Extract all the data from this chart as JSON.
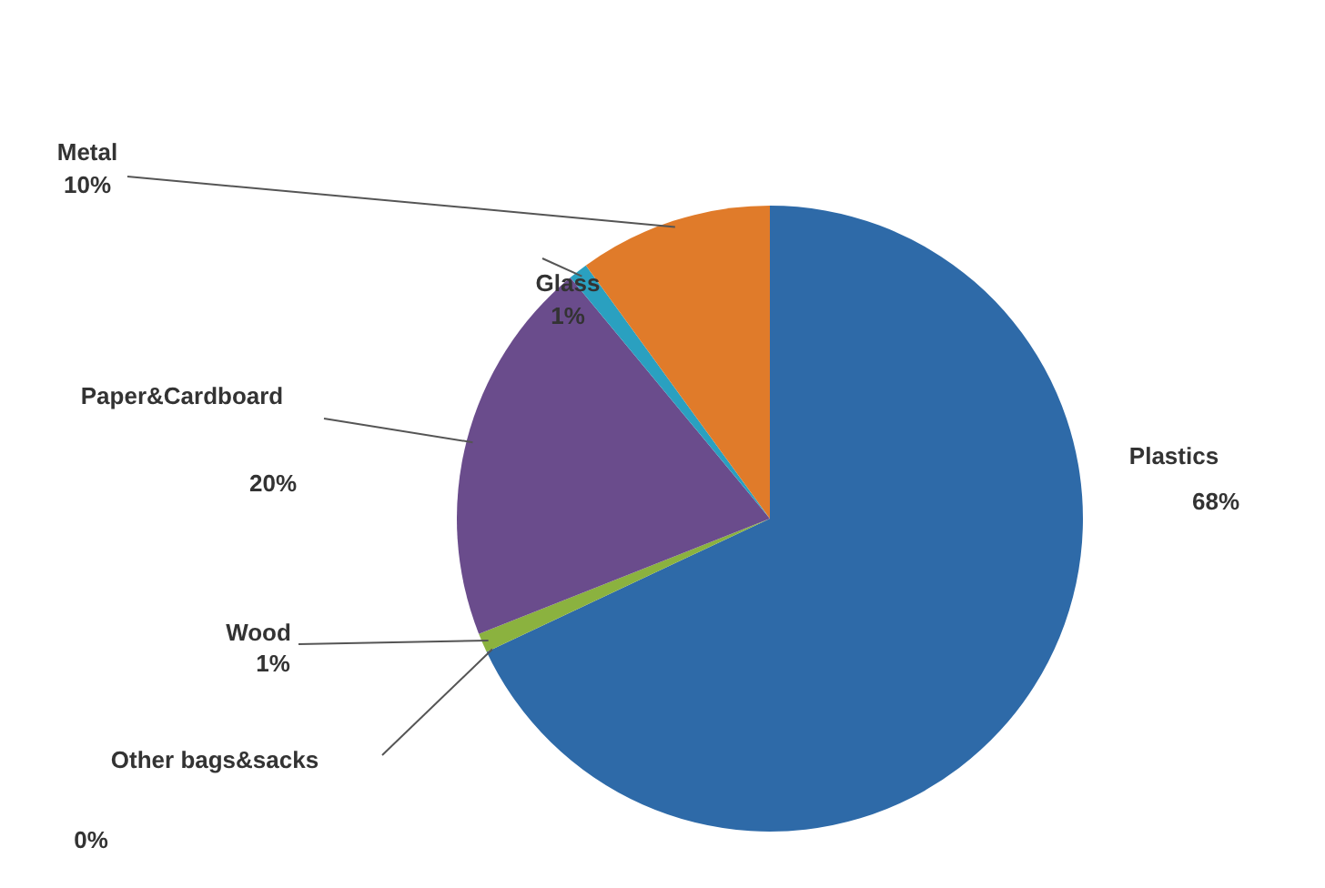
{
  "chart_data": {
    "type": "pie",
    "categories": [
      "Plastics",
      "Other bags&sacks",
      "Wood",
      "Paper&Cardboard",
      "Glass",
      "Metal"
    ],
    "values": [
      68,
      0,
      1,
      20,
      1,
      10
    ],
    "value_labels": [
      "68%",
      "0%",
      "1%",
      "20%",
      "1%",
      "10%"
    ],
    "colors": [
      "#2e6aa8",
      "#c0504d",
      "#8bb23f",
      "#6a4c8c",
      "#2aa0c0",
      "#e07b2a"
    ],
    "legend": false
  }
}
